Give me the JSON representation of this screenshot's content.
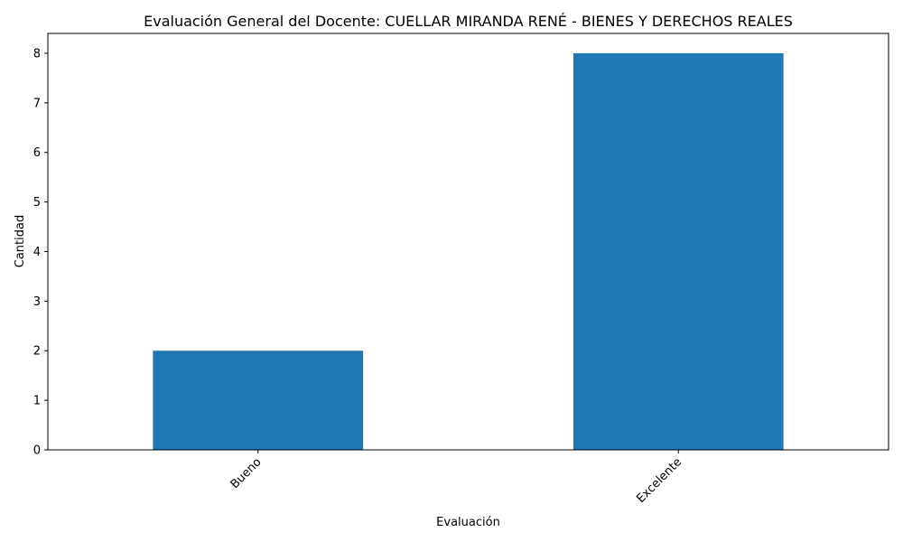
{
  "chart_data": {
    "type": "bar",
    "title": "Evaluación General del Docente: CUELLAR MIRANDA RENÉ - BIENES Y DERECHOS REALES",
    "xlabel": "Evaluación",
    "ylabel": "Cantidad",
    "categories": [
      "Bueno",
      "Excelente"
    ],
    "values": [
      2,
      8
    ],
    "ylim": [
      0,
      8.4
    ],
    "yticks": [
      0,
      1,
      2,
      3,
      4,
      5,
      6,
      7,
      8
    ],
    "bar_color": "#1f77b4",
    "grid": false,
    "legend": "none",
    "xtick_rotation_deg": 45
  }
}
